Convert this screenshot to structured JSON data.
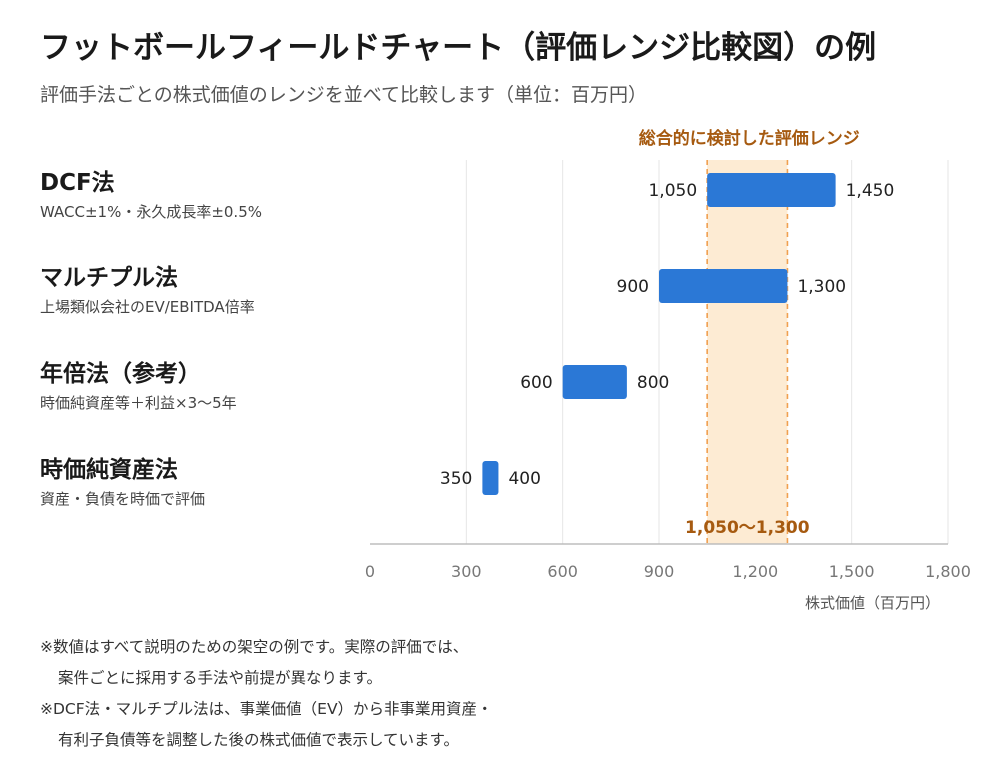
{
  "title": "フットボールフィールドチャート（評価レンジ比較図）の例",
  "subtitle": "評価手法ごとの株式価値のレンジを並べて比較します（単位：百万円）",
  "chart_data": {
    "type": "bar",
    "orientation": "horizontal-range",
    "categories": [
      "DCF法",
      "マルチプル法",
      "年倍法（参考）",
      "時価純資産法"
    ],
    "descriptions": [
      "WACC±1%・永久成長率±0.5%",
      "上場類似会社のEV/EBITDA倍率",
      "時価純資産等＋利益×3〜5年",
      "資産・負債を時価で評価"
    ],
    "ranges": [
      {
        "low": 1050,
        "high": 1450,
        "low_label": "1,050",
        "high_label": "1,450"
      },
      {
        "low": 900,
        "high": 1300,
        "low_label": "900",
        "high_label": "1,300"
      },
      {
        "low": 600,
        "high": 800,
        "low_label": "600",
        "high_label": "800"
      },
      {
        "low": 350,
        "high": 400,
        "low_label": "350",
        "high_label": "400"
      }
    ],
    "xlim": [
      0,
      1800
    ],
    "xticks": [
      0,
      300,
      600,
      900,
      1200,
      1500,
      1800
    ],
    "xtick_labels": [
      "0",
      "300",
      "600",
      "900",
      "1,200",
      "1,500",
      "1,800"
    ],
    "xlabel": "株式価値（百万円）",
    "grid": true,
    "bar_color": "#2b78d6",
    "highlight": {
      "low": 1050,
      "high": 1300,
      "title": "総合的に検討した評価レンジ",
      "label": "1,050〜1,300",
      "fill_color": "#fdebd3",
      "line_color": "#f0a050",
      "text_color": "#a65a10"
    }
  },
  "notes": {
    "line1": "※数値はすべて説明のための架空の例です。実際の評価では、",
    "line2": "案件ごとに採用する手法や前提が異なります。",
    "line3": "※DCF法・マルチプル法は、事業価値（EV）から非事業用資産・",
    "line4": "有利子負債等を調整した後の株式価値で表示しています。"
  }
}
